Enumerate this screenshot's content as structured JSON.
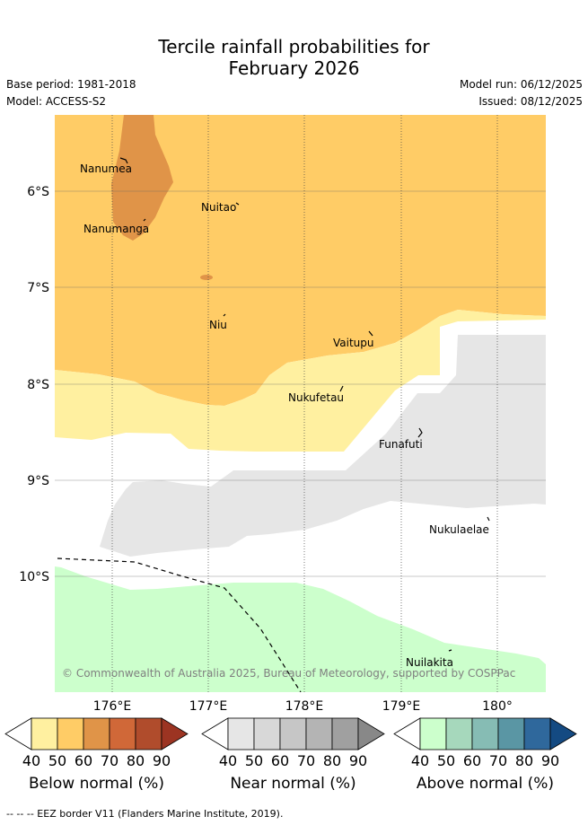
{
  "title_line1": "Tercile rainfall probabilities for",
  "title_line2": "February 2026",
  "base_period": "Base period: 1981-2018",
  "model": "Model: ACCESS-S2",
  "model_run": "Model run: 06/12/2025",
  "issued": "Issued: 08/12/2025",
  "lat_labels": [
    "6°S",
    "7°S",
    "8°S",
    "9°S",
    "10°S"
  ],
  "lon_labels": [
    "176°E",
    "177°E",
    "178°E",
    "179°E",
    "180°"
  ],
  "places": [
    "Nanumea",
    "Nanumanga",
    "Nuitao",
    "Niu",
    "Vaitupu",
    "Nukufetau",
    "Funafuti",
    "Nukulaelae",
    "Nuilakita"
  ],
  "copyright": "© Commonwealth of Australia 2025, Bureau of Meteorology, supported by COSPPac",
  "colorbars": [
    {
      "label": "Below normal (%)",
      "ticks": [
        "40",
        "50",
        "60",
        "70",
        "80",
        "90"
      ],
      "colors": [
        "#ffffff",
        "#fff0a0",
        "#ffcc66",
        "#e09448",
        "#d06838",
        "#b04c2c",
        "#9c3422"
      ]
    },
    {
      "label": "Near normal (%)",
      "ticks": [
        "40",
        "50",
        "60",
        "70",
        "80",
        "90"
      ],
      "colors": [
        "#ffffff",
        "#e6e6e6",
        "#d8d8d8",
        "#c6c6c6",
        "#b4b4b4",
        "#a0a0a0",
        "#888888"
      ]
    },
    {
      "label": "Above normal (%)",
      "ticks": [
        "40",
        "50",
        "60",
        "70",
        "80",
        "90"
      ],
      "colors": [
        "#ffffff",
        "#ccffcc",
        "#a6d8bc",
        "#86bcb4",
        "#5a96a4",
        "#2f689c",
        "#144a82"
      ]
    }
  ],
  "footer": "--  --  -- EEZ border V11 (Flanders Marine Institute, 2019).",
  "colors": {
    "below_40": "#ffcc66",
    "below_60": "#e09448",
    "below_80": "#d06838",
    "below_weak": "#fff0a0",
    "near": "#e6e6e6",
    "above": "#ccffcc",
    "grid": "#555555"
  }
}
